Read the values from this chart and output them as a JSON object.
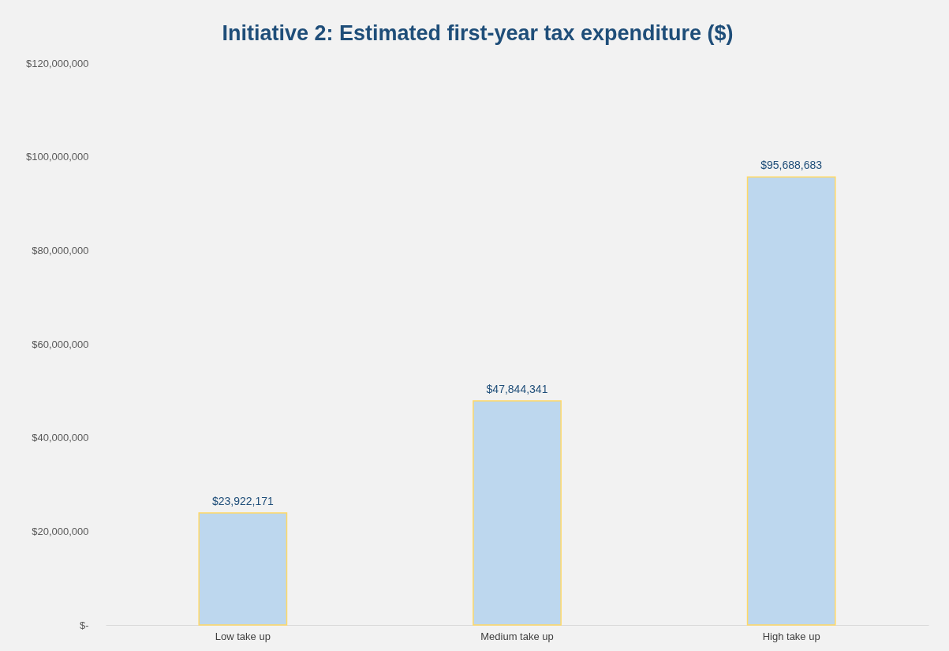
{
  "chart_data": {
    "type": "bar",
    "title": "Initiative 2: Estimated first-year tax expenditure ($)",
    "categories": [
      "Low take up",
      "Medium take up",
      "High take up"
    ],
    "values": [
      23922171,
      47844341,
      95688683
    ],
    "value_labels": [
      "$23,922,171",
      "$47,844,341",
      "$95,688,683"
    ],
    "color": "#bdd7ee",
    "ylim": [
      0,
      120000000
    ],
    "yticks": [
      {
        "value": 0,
        "label": "$-"
      },
      {
        "value": 20000000,
        "label": "$20,000,000"
      },
      {
        "value": 40000000,
        "label": "$40,000,000"
      },
      {
        "value": 60000000,
        "label": "$60,000,000"
      },
      {
        "value": 80000000,
        "label": "$80,000,000"
      },
      {
        "value": 100000000,
        "label": "$100,000,000"
      },
      {
        "value": 120000000,
        "label": "$120,000,000"
      }
    ],
    "grid": false
  }
}
